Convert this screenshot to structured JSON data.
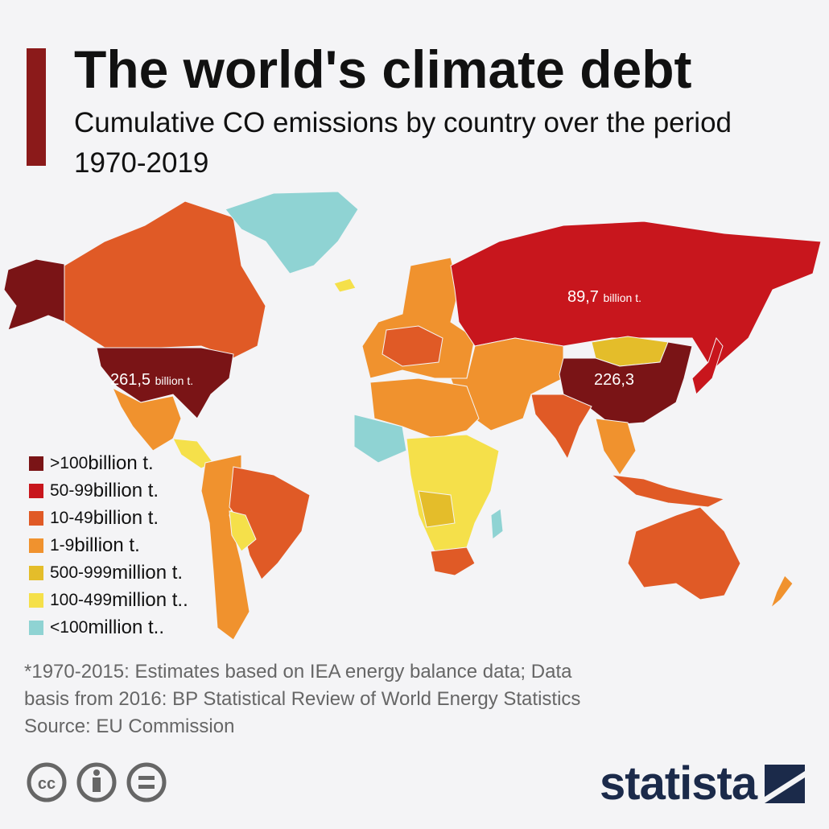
{
  "header": {
    "title": "The world's climate debt",
    "subtitle": "Cumulative CO emissions by country over the period 1970-2019"
  },
  "map": {
    "labels": [
      {
        "value": "261,5",
        "unit": "billion t."
      },
      {
        "value": "89,7",
        "unit": "billion t."
      },
      {
        "value": "226,3"
      }
    ]
  },
  "legend": [
    {
      "range": ">100",
      "unit": "billion t.",
      "color": "#7a1416"
    },
    {
      "range": "50-99",
      "unit": "billion t.",
      "color": "#c8161d"
    },
    {
      "range": "10-49",
      "unit": "billion t.",
      "color": "#e05a26"
    },
    {
      "range": "1-9",
      "unit": "billion t.",
      "color": "#f0922e"
    },
    {
      "range": "500-999",
      "unit": "million t.",
      "color": "#e4bd2a"
    },
    {
      "range": "100-499",
      "unit": "million t..",
      "color": "#f5e04a"
    },
    {
      "range": "<100",
      "unit": "million t..",
      "color": "#8fd3d3"
    }
  ],
  "footer": {
    "note": [
      "*1970-2015: Estimates based on IEA energy balance data; Data",
      "basis from 2016: BP Statistical Review of World Energy Statistics"
    ],
    "source": "Source: EU Commission"
  },
  "brand": "statista"
}
